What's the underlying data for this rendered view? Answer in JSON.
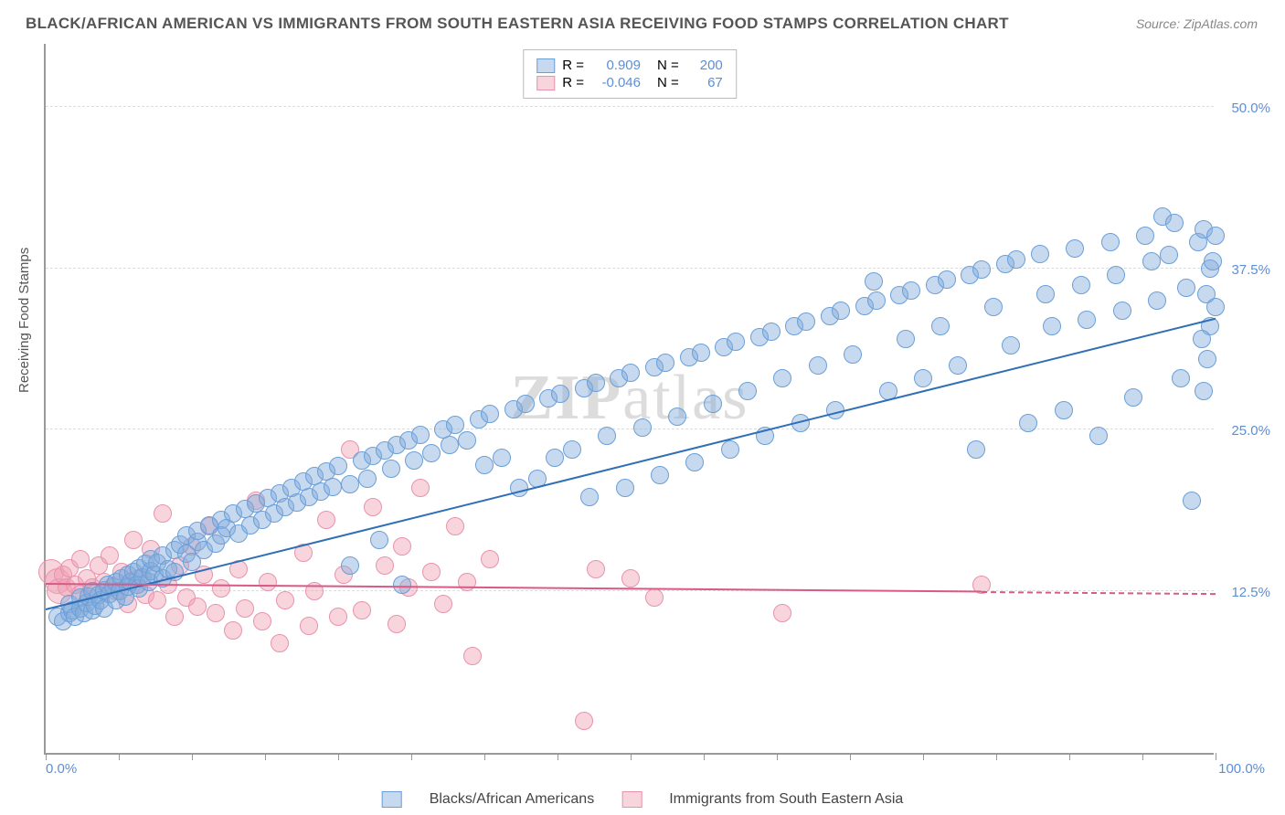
{
  "title": "BLACK/AFRICAN AMERICAN VS IMMIGRANTS FROM SOUTH EASTERN ASIA RECEIVING FOOD STAMPS CORRELATION CHART",
  "source": "Source: ZipAtlas.com",
  "ylabel": "Receiving Food Stamps",
  "watermark_a": "ZIP",
  "watermark_b": "atlas",
  "chart": {
    "type": "scatter",
    "xlim": [
      0,
      100
    ],
    "ylim": [
      0,
      55
    ],
    "xtick_labels": {
      "min": "0.0%",
      "max": "100.0%"
    },
    "ytick_positions": [
      12.5,
      25.0,
      37.5,
      50.0
    ],
    "ytick_labels": [
      "12.5%",
      "25.0%",
      "37.5%",
      "50.0%"
    ],
    "xtick_marks": [
      0,
      6.25,
      12.5,
      18.75,
      25,
      31.25,
      37.5,
      43.75,
      50,
      56.25,
      62.5,
      68.75,
      75,
      81.25,
      87.5,
      93.75,
      100
    ],
    "grid_color": "#dddddd",
    "axis_color": "#999999",
    "tick_text_color": "#5b8fd6",
    "background_color": "#ffffff"
  },
  "series": {
    "blue": {
      "label": "Blacks/African Americans",
      "fill": "rgba(130,170,220,0.45)",
      "stroke": "#6a9fd8",
      "marker_radius": 10,
      "R_label": "R =",
      "R": "0.909",
      "N_label": "N =",
      "N": "200",
      "trend": {
        "x1": 0,
        "y1": 11.0,
        "x2": 100,
        "y2": 33.5,
        "color": "#2f6fb5",
        "width": 2
      },
      "points": [
        [
          1,
          10.5
        ],
        [
          1.5,
          10.2
        ],
        [
          2,
          10.8
        ],
        [
          2,
          11.5
        ],
        [
          2.3,
          11
        ],
        [
          2.5,
          10.5
        ],
        [
          3,
          11.2
        ],
        [
          3,
          12
        ],
        [
          3.3,
          10.8
        ],
        [
          3.5,
          11.6
        ],
        [
          3.7,
          12.1
        ],
        [
          4,
          11
        ],
        [
          4,
          12.5
        ],
        [
          4.2,
          11.4
        ],
        [
          4.5,
          12.2
        ],
        [
          4.7,
          11.8
        ],
        [
          5,
          12.6
        ],
        [
          5,
          11.2
        ],
        [
          5.3,
          13
        ],
        [
          5.5,
          12.3
        ],
        [
          5.8,
          12.9
        ],
        [
          6,
          13.2
        ],
        [
          6,
          11.8
        ],
        [
          6.3,
          12.5
        ],
        [
          6.5,
          13.5
        ],
        [
          6.8,
          12.1
        ],
        [
          7,
          13.8
        ],
        [
          7,
          12.9
        ],
        [
          7.3,
          13.2
        ],
        [
          7.5,
          14
        ],
        [
          7.8,
          13
        ],
        [
          8,
          14.3
        ],
        [
          8,
          12.7
        ],
        [
          8.3,
          13.6
        ],
        [
          8.5,
          14.6
        ],
        [
          8.8,
          13.2
        ],
        [
          9,
          14.1
        ],
        [
          9,
          15
        ],
        [
          9.3,
          13.8
        ],
        [
          9.5,
          14.7
        ],
        [
          10,
          15.3
        ],
        [
          10,
          13.5
        ],
        [
          10.5,
          14.2
        ],
        [
          11,
          15.7
        ],
        [
          11,
          14
        ],
        [
          11.5,
          16.1
        ],
        [
          12,
          15.4
        ],
        [
          12,
          16.8
        ],
        [
          12.5,
          14.8
        ],
        [
          13,
          16.3
        ],
        [
          13,
          17.2
        ],
        [
          13.5,
          15.7
        ],
        [
          14,
          17.6
        ],
        [
          14.5,
          16.2
        ],
        [
          15,
          18
        ],
        [
          15,
          16.8
        ],
        [
          15.5,
          17.4
        ],
        [
          16,
          18.5
        ],
        [
          16.5,
          17
        ],
        [
          17,
          18.9
        ],
        [
          17.5,
          17.6
        ],
        [
          18,
          19.3
        ],
        [
          18.5,
          18
        ],
        [
          19,
          19.7
        ],
        [
          19.5,
          18.5
        ],
        [
          20,
          20.1
        ],
        [
          20.5,
          19
        ],
        [
          21,
          20.5
        ],
        [
          21.5,
          19.4
        ],
        [
          22,
          21
        ],
        [
          22.5,
          19.8
        ],
        [
          23,
          21.4
        ],
        [
          23.5,
          20.2
        ],
        [
          24,
          21.8
        ],
        [
          24.5,
          20.6
        ],
        [
          25,
          22.2
        ],
        [
          26,
          14.5
        ],
        [
          26,
          20.8
        ],
        [
          27,
          22.6
        ],
        [
          27.5,
          21.2
        ],
        [
          28,
          23
        ],
        [
          28.5,
          16.5
        ],
        [
          29,
          23.4
        ],
        [
          29.5,
          22
        ],
        [
          30,
          23.8
        ],
        [
          30.5,
          13
        ],
        [
          31,
          24.2
        ],
        [
          31.5,
          22.6
        ],
        [
          32,
          24.6
        ],
        [
          33,
          23.2
        ],
        [
          34,
          25
        ],
        [
          34.5,
          23.8
        ],
        [
          35,
          25.4
        ],
        [
          36,
          24.2
        ],
        [
          37,
          25.8
        ],
        [
          37.5,
          22.3
        ],
        [
          38,
          26.2
        ],
        [
          39,
          22.8
        ],
        [
          40,
          26.6
        ],
        [
          40.5,
          20.5
        ],
        [
          41,
          27
        ],
        [
          42,
          21.2
        ],
        [
          43,
          27.4
        ],
        [
          43.5,
          22.8
        ],
        [
          44,
          27.8
        ],
        [
          45,
          23.5
        ],
        [
          46,
          28.2
        ],
        [
          46.5,
          19.8
        ],
        [
          47,
          28.6
        ],
        [
          48,
          24.5
        ],
        [
          49,
          29
        ],
        [
          49.5,
          20.5
        ],
        [
          50,
          29.4
        ],
        [
          51,
          25.2
        ],
        [
          52,
          29.8
        ],
        [
          52.5,
          21.5
        ],
        [
          53,
          30.2
        ],
        [
          54,
          26
        ],
        [
          55,
          30.6
        ],
        [
          55.5,
          22.5
        ],
        [
          56,
          31
        ],
        [
          57,
          27
        ],
        [
          58,
          31.4
        ],
        [
          58.5,
          23.5
        ],
        [
          59,
          31.8
        ],
        [
          60,
          28
        ],
        [
          61,
          32.2
        ],
        [
          61.5,
          24.5
        ],
        [
          62,
          32.6
        ],
        [
          63,
          29
        ],
        [
          64,
          33
        ],
        [
          64.5,
          25.5
        ],
        [
          65,
          33.4
        ],
        [
          66,
          30
        ],
        [
          67,
          33.8
        ],
        [
          67.5,
          26.5
        ],
        [
          68,
          34.2
        ],
        [
          69,
          30.8
        ],
        [
          70,
          34.6
        ],
        [
          70.8,
          36.5
        ],
        [
          71,
          35
        ],
        [
          72,
          28
        ],
        [
          73,
          35.4
        ],
        [
          73.5,
          32
        ],
        [
          74,
          35.8
        ],
        [
          75,
          29
        ],
        [
          76,
          36.2
        ],
        [
          76.5,
          33
        ],
        [
          77,
          36.6
        ],
        [
          78,
          30
        ],
        [
          79,
          37
        ],
        [
          79.5,
          23.5
        ],
        [
          80,
          37.4
        ],
        [
          81,
          34.5
        ],
        [
          82,
          37.8
        ],
        [
          82.5,
          31.5
        ],
        [
          83,
          38.2
        ],
        [
          84,
          25.5
        ],
        [
          85,
          38.6
        ],
        [
          85.5,
          35.5
        ],
        [
          86,
          33
        ],
        [
          87,
          26.5
        ],
        [
          88,
          39
        ],
        [
          88.5,
          36.2
        ],
        [
          89,
          33.5
        ],
        [
          90,
          24.5
        ],
        [
          91,
          39.5
        ],
        [
          91.5,
          37
        ],
        [
          92,
          34.2
        ],
        [
          93,
          27.5
        ],
        [
          94,
          40
        ],
        [
          94.5,
          38
        ],
        [
          95,
          35
        ],
        [
          95.5,
          41.5
        ],
        [
          96,
          38.5
        ],
        [
          96.5,
          41
        ],
        [
          97,
          29
        ],
        [
          97.5,
          36
        ],
        [
          98,
          19.5
        ],
        [
          98.5,
          39.5
        ],
        [
          99,
          40.5
        ],
        [
          99,
          28
        ],
        [
          99.2,
          35.5
        ],
        [
          99.5,
          33
        ],
        [
          99.5,
          37.5
        ],
        [
          99.8,
          38
        ],
        [
          100,
          34.5
        ],
        [
          100,
          40
        ],
        [
          99.3,
          30.5
        ],
        [
          98.8,
          32
        ]
      ]
    },
    "pink": {
      "label": "Immigrants from South Eastern Asia",
      "fill": "rgba(240,160,180,0.45)",
      "stroke": "#e893ad",
      "marker_radius": 10,
      "R_label": "R =",
      "R": "-0.046",
      "N_label": "N =",
      "N": "67",
      "trend": {
        "x1": 0,
        "y1": 13.0,
        "x2": 80,
        "y2": 12.4,
        "color": "#d75a87",
        "width": 2,
        "dash_to": 100
      },
      "points": [
        [
          0.5,
          14
        ],
        [
          1,
          13.3
        ],
        [
          1.2,
          12.5
        ],
        [
          1.5,
          13.8
        ],
        [
          1.8,
          12.8
        ],
        [
          2,
          14.3
        ],
        [
          2.5,
          13
        ],
        [
          3,
          12.3
        ],
        [
          3,
          15
        ],
        [
          3.5,
          13.5
        ],
        [
          4,
          12.8
        ],
        [
          4.5,
          14.5
        ],
        [
          5,
          13.2
        ],
        [
          5.5,
          15.3
        ],
        [
          6,
          12.5
        ],
        [
          6.5,
          14
        ],
        [
          7,
          11.5
        ],
        [
          7.5,
          16.5
        ],
        [
          8,
          13.5
        ],
        [
          8.5,
          12.2
        ],
        [
          9,
          15.8
        ],
        [
          9.5,
          11.8
        ],
        [
          10,
          18.5
        ],
        [
          10.5,
          13
        ],
        [
          11,
          10.5
        ],
        [
          11.5,
          14.5
        ],
        [
          12,
          12
        ],
        [
          12.5,
          16
        ],
        [
          13,
          11.3
        ],
        [
          13.5,
          13.8
        ],
        [
          14,
          17.5
        ],
        [
          14.5,
          10.8
        ],
        [
          15,
          12.7
        ],
        [
          16,
          9.5
        ],
        [
          16.5,
          14.2
        ],
        [
          17,
          11.2
        ],
        [
          18,
          19.5
        ],
        [
          18.5,
          10.2
        ],
        [
          19,
          13.2
        ],
        [
          20,
          8.5
        ],
        [
          20.5,
          11.8
        ],
        [
          22,
          15.5
        ],
        [
          22.5,
          9.8
        ],
        [
          23,
          12.5
        ],
        [
          24,
          18
        ],
        [
          25,
          10.5
        ],
        [
          25.5,
          13.8
        ],
        [
          26,
          23.5
        ],
        [
          27,
          11
        ],
        [
          28,
          19
        ],
        [
          29,
          14.5
        ],
        [
          30,
          10
        ],
        [
          30.5,
          16
        ],
        [
          31,
          12.8
        ],
        [
          32,
          20.5
        ],
        [
          33,
          14
        ],
        [
          34,
          11.5
        ],
        [
          35,
          17.5
        ],
        [
          36,
          13.2
        ],
        [
          36.5,
          7.5
        ],
        [
          38,
          15
        ],
        [
          46,
          2.5
        ],
        [
          47,
          14.2
        ],
        [
          50,
          13.5
        ],
        [
          52,
          12
        ],
        [
          63,
          10.8
        ],
        [
          80,
          13
        ]
      ]
    }
  }
}
